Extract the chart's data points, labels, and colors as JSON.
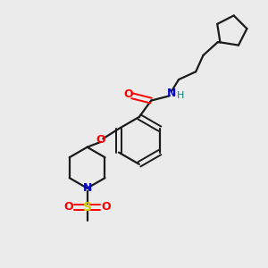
{
  "bg_color": "#ebebeb",
  "bond_color": "#1a1a1a",
  "atom_colors": {
    "O": "#ff0000",
    "N": "#0000cc",
    "S": "#cccc00",
    "H": "#008080",
    "C": "#1a1a1a"
  },
  "lw": 1.6,
  "lw_d": 1.4
}
